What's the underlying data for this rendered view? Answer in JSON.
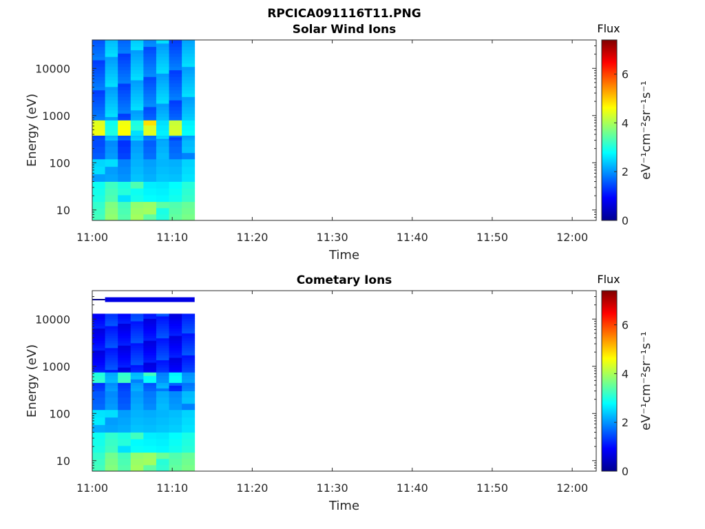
{
  "figure": {
    "filename": "RPCICA091116T11.PNG"
  },
  "colors": {
    "colormap": [
      "#00008f",
      "#0000ff",
      "#0080ff",
      "#00ffff",
      "#80ff80",
      "#ffff00",
      "#ff8000",
      "#ff0000",
      "#800000"
    ],
    "axis": "#262626",
    "band_line": "#000080"
  },
  "chart_data": [
    {
      "type": "heatmap",
      "title": "Solar Wind Ions",
      "xlabel": "Time",
      "ylabel": "Energy (eV)",
      "x_ticks": [
        "11:00",
        "11:10",
        "11:20",
        "11:30",
        "11:40",
        "11:50",
        "12:00"
      ],
      "xlim_minutes": [
        0,
        63
      ],
      "data_end_minute": 12.8,
      "y_scale": "log",
      "ylim": [
        6,
        40000
      ],
      "y_ticks": [
        10,
        100,
        1000,
        10000
      ],
      "y_tick_labels": [
        "10",
        "100",
        "1000",
        "10000"
      ],
      "colorbar": {
        "title": "Flux",
        "label": "eV⁻¹cm⁻²sr⁻¹s⁻¹",
        "min": 0,
        "max": 7.4,
        "ticks": [
          0,
          2,
          4,
          6
        ]
      },
      "time_columns": [
        {
          "start": 0.0,
          "end": 1.6,
          "profile": [
            {
              "e_min": 6,
              "e_max": 15,
              "flux": 3.2
            },
            {
              "e_min": 15,
              "e_max": 40,
              "flux": 2.8
            },
            {
              "e_min": 40,
              "e_max": 120,
              "flux": 2.3
            },
            {
              "e_min": 120,
              "e_max": 300,
              "flux": 1.7
            },
            {
              "e_min": 300,
              "e_max": 380,
              "flux": 1.5
            },
            {
              "e_min": 380,
              "e_max": 800,
              "flux": 4.4
            },
            {
              "e_min": 800,
              "e_max": 40000,
              "flux": 1.6
            }
          ]
        },
        {
          "start": 1.6,
          "end": 3.2,
          "profile": [
            {
              "e_min": 6,
              "e_max": 15,
              "flux": 3.7
            },
            {
              "e_min": 15,
              "e_max": 40,
              "flux": 3.1
            },
            {
              "e_min": 40,
              "e_max": 120,
              "flux": 2.3
            },
            {
              "e_min": 120,
              "e_max": 300,
              "flux": 2.1
            },
            {
              "e_min": 300,
              "e_max": 380,
              "flux": 2.3
            },
            {
              "e_min": 380,
              "e_max": 800,
              "flux": 2.8
            },
            {
              "e_min": 800,
              "e_max": 40000,
              "flux": 2.3
            }
          ]
        },
        {
          "start": 3.2,
          "end": 4.8,
          "profile": [
            {
              "e_min": 6,
              "e_max": 15,
              "flux": 3.2
            },
            {
              "e_min": 15,
              "e_max": 40,
              "flux": 2.8
            },
            {
              "e_min": 40,
              "e_max": 120,
              "flux": 2.1
            },
            {
              "e_min": 120,
              "e_max": 300,
              "flux": 1.4
            },
            {
              "e_min": 300,
              "e_max": 380,
              "flux": 1.5
            },
            {
              "e_min": 380,
              "e_max": 800,
              "flux": 4.4
            },
            {
              "e_min": 800,
              "e_max": 40000,
              "flux": 1.6
            }
          ]
        },
        {
          "start": 4.8,
          "end": 6.4,
          "profile": [
            {
              "e_min": 6,
              "e_max": 15,
              "flux": 3.7
            },
            {
              "e_min": 15,
              "e_max": 40,
              "flux": 3.1
            },
            {
              "e_min": 40,
              "e_max": 120,
              "flux": 2.4
            },
            {
              "e_min": 120,
              "e_max": 300,
              "flux": 2.1
            },
            {
              "e_min": 300,
              "e_max": 380,
              "flux": 2.3
            },
            {
              "e_min": 380,
              "e_max": 800,
              "flux": 2.8
            },
            {
              "e_min": 800,
              "e_max": 40000,
              "flux": 2.3
            }
          ]
        },
        {
          "start": 6.4,
          "end": 8.0,
          "profile": [
            {
              "e_min": 6,
              "e_max": 15,
              "flux": 3.7
            },
            {
              "e_min": 15,
              "e_max": 40,
              "flux": 2.9
            },
            {
              "e_min": 40,
              "e_max": 120,
              "flux": 2.2
            },
            {
              "e_min": 120,
              "e_max": 300,
              "flux": 1.6
            },
            {
              "e_min": 300,
              "e_max": 380,
              "flux": 1.6
            },
            {
              "e_min": 380,
              "e_max": 800,
              "flux": 4.6
            },
            {
              "e_min": 800,
              "e_max": 40000,
              "flux": 1.7
            }
          ]
        },
        {
          "start": 8.0,
          "end": 9.6,
          "profile": [
            {
              "e_min": 6,
              "e_max": 15,
              "flux": 3.2
            },
            {
              "e_min": 15,
              "e_max": 40,
              "flux": 2.8
            },
            {
              "e_min": 40,
              "e_max": 120,
              "flux": 2.3
            },
            {
              "e_min": 120,
              "e_max": 300,
              "flux": 2.1
            },
            {
              "e_min": 300,
              "e_max": 380,
              "flux": 2.3
            },
            {
              "e_min": 380,
              "e_max": 800,
              "flux": 2.8
            },
            {
              "e_min": 800,
              "e_max": 40000,
              "flux": 2.3
            }
          ]
        },
        {
          "start": 9.6,
          "end": 11.2,
          "profile": [
            {
              "e_min": 6,
              "e_max": 15,
              "flux": 3.6
            },
            {
              "e_min": 15,
              "e_max": 40,
              "flux": 2.9
            },
            {
              "e_min": 40,
              "e_max": 120,
              "flux": 2.2
            },
            {
              "e_min": 120,
              "e_max": 300,
              "flux": 1.5
            },
            {
              "e_min": 300,
              "e_max": 380,
              "flux": 1.6
            },
            {
              "e_min": 380,
              "e_max": 800,
              "flux": 4.4
            },
            {
              "e_min": 800,
              "e_max": 40000,
              "flux": 1.6
            }
          ]
        },
        {
          "start": 11.2,
          "end": 12.8,
          "profile": [
            {
              "e_min": 6,
              "e_max": 15,
              "flux": 3.7
            },
            {
              "e_min": 15,
              "e_max": 40,
              "flux": 3.1
            },
            {
              "e_min": 40,
              "e_max": 120,
              "flux": 2.4
            },
            {
              "e_min": 120,
              "e_max": 300,
              "flux": 2.1
            },
            {
              "e_min": 300,
              "e_max": 380,
              "flux": 2.3
            },
            {
              "e_min": 380,
              "e_max": 800,
              "flux": 2.8
            },
            {
              "e_min": 800,
              "e_max": 40000,
              "flux": 2.3
            }
          ]
        }
      ]
    },
    {
      "type": "heatmap",
      "title": "Cometary Ions",
      "xlabel": "Time",
      "ylabel": "Energy (eV)",
      "x_ticks": [
        "11:00",
        "11:10",
        "11:20",
        "11:30",
        "11:40",
        "11:50",
        "12:00"
      ],
      "xlim_minutes": [
        0,
        63
      ],
      "data_end_minute": 12.8,
      "y_scale": "log",
      "ylim": [
        6,
        40000
      ],
      "y_ticks": [
        10,
        100,
        1000,
        10000
      ],
      "y_tick_labels": [
        "10",
        "100",
        "1000",
        "10000"
      ],
      "colorbar": {
        "title": "Flux",
        "label": "eV⁻¹cm⁻²sr⁻¹s⁻¹",
        "min": 0,
        "max": 7.4,
        "ticks": [
          0,
          2,
          4,
          6
        ]
      },
      "high_energy_band": {
        "e_min": 23000,
        "e_max": 29000,
        "flux": 0.7
      },
      "time_columns": [
        {
          "start": 0.0,
          "end": 1.6,
          "profile": [
            {
              "e_min": 6,
              "e_max": 15,
              "flux": 3.2
            },
            {
              "e_min": 15,
              "e_max": 40,
              "flux": 2.8
            },
            {
              "e_min": 40,
              "e_max": 120,
              "flux": 2.4
            },
            {
              "e_min": 120,
              "e_max": 300,
              "flux": 1.8
            },
            {
              "e_min": 300,
              "e_max": 450,
              "flux": 1.4
            },
            {
              "e_min": 450,
              "e_max": 750,
              "flux": 3.0
            },
            {
              "e_min": 750,
              "e_max": 13000,
              "flux": 0.9
            }
          ]
        },
        {
          "start": 1.6,
          "end": 3.2,
          "profile": [
            {
              "e_min": 6,
              "e_max": 15,
              "flux": 3.6
            },
            {
              "e_min": 15,
              "e_max": 40,
              "flux": 3.0
            },
            {
              "e_min": 40,
              "e_max": 120,
              "flux": 2.3
            },
            {
              "e_min": 120,
              "e_max": 300,
              "flux": 2.1
            },
            {
              "e_min": 300,
              "e_max": 450,
              "flux": 2.0
            },
            {
              "e_min": 450,
              "e_max": 750,
              "flux": 2.1
            },
            {
              "e_min": 750,
              "e_max": 13000,
              "flux": 1.3
            }
          ]
        },
        {
          "start": 3.2,
          "end": 4.8,
          "profile": [
            {
              "e_min": 6,
              "e_max": 15,
              "flux": 3.2
            },
            {
              "e_min": 15,
              "e_max": 40,
              "flux": 2.8
            },
            {
              "e_min": 40,
              "e_max": 120,
              "flux": 2.3
            },
            {
              "e_min": 120,
              "e_max": 300,
              "flux": 1.6
            },
            {
              "e_min": 300,
              "e_max": 450,
              "flux": 1.3
            },
            {
              "e_min": 450,
              "e_max": 750,
              "flux": 3.0
            },
            {
              "e_min": 750,
              "e_max": 13000,
              "flux": 0.9
            }
          ]
        },
        {
          "start": 4.8,
          "end": 6.4,
          "profile": [
            {
              "e_min": 6,
              "e_max": 15,
              "flux": 3.7
            },
            {
              "e_min": 15,
              "e_max": 40,
              "flux": 3.0
            },
            {
              "e_min": 40,
              "e_max": 120,
              "flux": 2.4
            },
            {
              "e_min": 120,
              "e_max": 300,
              "flux": 2.1
            },
            {
              "e_min": 300,
              "e_max": 450,
              "flux": 2.0
            },
            {
              "e_min": 450,
              "e_max": 750,
              "flux": 2.1
            },
            {
              "e_min": 750,
              "e_max": 13000,
              "flux": 1.3
            }
          ]
        },
        {
          "start": 6.4,
          "end": 8.0,
          "profile": [
            {
              "e_min": 6,
              "e_max": 15,
              "flux": 3.7
            },
            {
              "e_min": 15,
              "e_max": 40,
              "flux": 2.9
            },
            {
              "e_min": 40,
              "e_max": 120,
              "flux": 2.3
            },
            {
              "e_min": 120,
              "e_max": 300,
              "flux": 1.8
            },
            {
              "e_min": 300,
              "e_max": 450,
              "flux": 1.4
            },
            {
              "e_min": 450,
              "e_max": 750,
              "flux": 3.0
            },
            {
              "e_min": 750,
              "e_max": 13000,
              "flux": 0.9
            }
          ]
        },
        {
          "start": 8.0,
          "end": 9.6,
          "profile": [
            {
              "e_min": 6,
              "e_max": 15,
              "flux": 3.3
            },
            {
              "e_min": 15,
              "e_max": 40,
              "flux": 2.8
            },
            {
              "e_min": 40,
              "e_max": 120,
              "flux": 2.3
            },
            {
              "e_min": 120,
              "e_max": 300,
              "flux": 2.1
            },
            {
              "e_min": 300,
              "e_max": 450,
              "flux": 2.0
            },
            {
              "e_min": 450,
              "e_max": 750,
              "flux": 2.1
            },
            {
              "e_min": 750,
              "e_max": 13000,
              "flux": 1.3
            }
          ]
        },
        {
          "start": 9.6,
          "end": 11.2,
          "profile": [
            {
              "e_min": 6,
              "e_max": 15,
              "flux": 3.6
            },
            {
              "e_min": 15,
              "e_max": 40,
              "flux": 2.9
            },
            {
              "e_min": 40,
              "e_max": 120,
              "flux": 2.3
            },
            {
              "e_min": 120,
              "e_max": 300,
              "flux": 1.8
            },
            {
              "e_min": 300,
              "e_max": 450,
              "flux": 1.4
            },
            {
              "e_min": 450,
              "e_max": 750,
              "flux": 2.9
            },
            {
              "e_min": 750,
              "e_max": 13000,
              "flux": 0.9
            }
          ]
        },
        {
          "start": 11.2,
          "end": 12.8,
          "profile": [
            {
              "e_min": 6,
              "e_max": 15,
              "flux": 3.7
            },
            {
              "e_min": 15,
              "e_max": 40,
              "flux": 3.0
            },
            {
              "e_min": 40,
              "e_max": 120,
              "flux": 2.4
            },
            {
              "e_min": 120,
              "e_max": 300,
              "flux": 2.1
            },
            {
              "e_min": 300,
              "e_max": 450,
              "flux": 2.0
            },
            {
              "e_min": 450,
              "e_max": 750,
              "flux": 2.1
            },
            {
              "e_min": 750,
              "e_max": 13000,
              "flux": 1.3
            }
          ]
        }
      ]
    }
  ]
}
